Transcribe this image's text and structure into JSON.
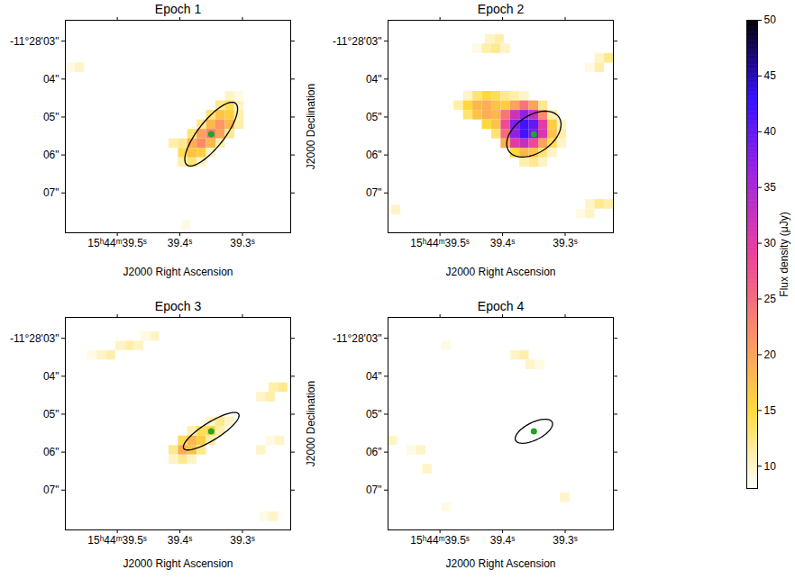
{
  "chart_data": {
    "type": "heatmap",
    "xlim": [
      39.583,
      39.223
    ],
    "ylim": [
      8.05,
      2.45
    ],
    "xticks": [
      {
        "value": 39.5,
        "label": "15ʰ44ᵐ39.5ˢ"
      },
      {
        "value": 39.4,
        "label": "39.4ˢ"
      },
      {
        "value": 39.3,
        "label": "39.3ˢ"
      }
    ],
    "yticks": [
      {
        "value": 3,
        "label": "-11°28'03\""
      },
      {
        "value": 4,
        "label": "04\""
      },
      {
        "value": 5,
        "label": "05\""
      },
      {
        "value": 6,
        "label": "06\""
      },
      {
        "value": 7,
        "label": "07\""
      }
    ],
    "cell_size": {
      "ra": 0.015,
      "dec": 0.25
    },
    "colorbar": {
      "label": "Flux density (μJy)",
      "range": [
        8,
        50
      ],
      "ticks": [
        10,
        15,
        20,
        25,
        30,
        35,
        40,
        45,
        50
      ],
      "colors": [
        "#ffffff",
        "#ffd93b",
        "#f98c68",
        "#ee3f9c",
        "#a024e0",
        "#3410ff",
        "#000000"
      ]
    },
    "panels": [
      {
        "title": "Epoch 1",
        "xlabel": "J2000 Right Ascension",
        "source": {
          "ra": 39.35,
          "dec": 5.45,
          "color": "#22a32a",
          "marker": "circle"
        },
        "ellipse": {
          "ra": 39.35,
          "dec": 5.45,
          "major": 2.0,
          "minor": 0.65,
          "pa": 145
        },
        "cells": [
          {
            "dec": 3.7,
            "ra_start": 39.575,
            "flux": [
              9,
              10
            ]
          },
          {
            "dec": 4.45,
            "ra_start": 39.32,
            "flux": [
              10,
              9
            ]
          },
          {
            "dec": 4.7,
            "ra_start": 39.335,
            "flux": [
              12,
              14,
              10
            ]
          },
          {
            "dec": 4.95,
            "ra_start": 39.35,
            "flux": [
              13,
              17,
              16,
              11
            ]
          },
          {
            "dec": 5.2,
            "ra_start": 39.365,
            "flux": [
              12,
              18,
              21,
              18,
              11
            ]
          },
          {
            "dec": 5.45,
            "ra_start": 39.38,
            "flux": [
              13,
              20,
              23,
              20,
              12
            ]
          },
          {
            "dec": 5.7,
            "ra_start": 39.41,
            "flux": [
              11,
              12,
              19,
              22,
              18,
              11
            ]
          },
          {
            "dec": 5.95,
            "ra_start": 39.395,
            "flux": [
              14,
              17,
              16,
              10
            ]
          },
          {
            "dec": 6.2,
            "ra_start": 39.395,
            "flux": [
              11,
              13,
              10
            ]
          },
          {
            "dec": 7.85,
            "ra_start": 39.39,
            "flux": [
              9
            ]
          }
        ]
      },
      {
        "title": "Epoch 2",
        "xlabel": "J2000 Right Ascension",
        "ylabel": "J2000 Declination",
        "source": {
          "ra": 39.35,
          "dec": 5.45,
          "color": "#22a32a",
          "marker": "circle"
        },
        "ellipse": {
          "ra": 39.35,
          "dec": 5.45,
          "major": 1.5,
          "minor": 0.95,
          "pa": 130
        },
        "cells": [
          {
            "dec": 2.95,
            "ra_start": 39.42,
            "flux": [
              10,
              11
            ]
          },
          {
            "dec": 3.2,
            "ra_start": 39.44,
            "flux": [
              9,
              11,
              12,
              10
            ]
          },
          {
            "dec": 3.45,
            "ra_start": 39.245,
            "flux": [
              10,
              12
            ]
          },
          {
            "dec": 3.7,
            "ra_start": 39.26,
            "flux": [
              9,
              11
            ]
          },
          {
            "dec": 4.45,
            "ra_start": 39.455,
            "flux": [
              10,
              13,
              15,
              14,
              12,
              11,
              10
            ]
          },
          {
            "dec": 4.7,
            "ra_start": 39.47,
            "flux": [
              11,
              15,
              18,
              19,
              17,
              16,
              20,
              24,
              20,
              12
            ]
          },
          {
            "dec": 4.95,
            "ra_start": 39.455,
            "flux": [
              13,
              17,
              19,
              18,
              24,
              32,
              37,
              33,
              22,
              11
            ]
          },
          {
            "dec": 5.2,
            "ra_start": 39.425,
            "flux": [
              15,
              17,
              28,
              38,
              42,
              40,
              30,
              16,
              10
            ]
          },
          {
            "dec": 5.45,
            "ra_start": 39.41,
            "flux": [
              13,
              25,
              37,
              42,
              39,
              31,
              17,
              11
            ]
          },
          {
            "dec": 5.7,
            "ra_start": 39.395,
            "flux": [
              19,
              30,
              33,
              28,
              20,
              14,
              10
            ]
          },
          {
            "dec": 5.95,
            "ra_start": 39.38,
            "flux": [
              15,
              18,
              17,
              13,
              10
            ]
          },
          {
            "dec": 6.2,
            "ra_start": 39.365,
            "flux": [
              11,
              12,
              10
            ]
          },
          {
            "dec": 7.3,
            "ra_start": 39.26,
            "flux": [
              10,
              12,
              11
            ]
          },
          {
            "dec": 7.45,
            "ra_start": 39.57,
            "flux": [
              10
            ]
          },
          {
            "dec": 7.55,
            "ra_start": 39.275,
            "flux": [
              9,
              10
            ]
          }
        ]
      },
      {
        "title": "Epoch 3",
        "xlabel": "J2000 Right Ascension",
        "source": {
          "ra": 39.35,
          "dec": 5.45,
          "color": "#22a32a",
          "marker": "circle"
        },
        "ellipse": {
          "ra": 39.35,
          "dec": 5.45,
          "major": 1.6,
          "minor": 0.45,
          "pa": 125
        },
        "cells": [
          {
            "dec": 2.95,
            "ra_start": 39.455,
            "flux": [
              9,
              10
            ]
          },
          {
            "dec": 3.2,
            "ra_start": 39.495,
            "flux": [
              10,
              11,
              10
            ]
          },
          {
            "dec": 3.45,
            "ra_start": 39.54,
            "flux": [
              9,
              10,
              11
            ]
          },
          {
            "dec": 4.3,
            "ra_start": 39.25,
            "flux": [
              11,
              12
            ]
          },
          {
            "dec": 4.55,
            "ra_start": 39.27,
            "flux": [
              10,
              11
            ]
          },
          {
            "dec": 5.2,
            "ra_start": 39.35,
            "flux": [
              10,
              12,
              10
            ]
          },
          {
            "dec": 5.45,
            "ra_start": 39.38,
            "flux": [
              11,
              14,
              15,
              11
            ]
          },
          {
            "dec": 5.7,
            "ra_start": 39.395,
            "flux": [
              14,
              18,
              16,
              11
            ]
          },
          {
            "dec": 5.7,
            "ra_start": 39.255,
            "flux": [
              9,
              10
            ]
          },
          {
            "dec": 5.95,
            "ra_start": 39.41,
            "flux": [
              12,
              19,
              17,
              12
            ]
          },
          {
            "dec": 5.95,
            "ra_start": 39.27,
            "flux": [
              10
            ]
          },
          {
            "dec": 6.2,
            "ra_start": 39.41,
            "flux": [
              10,
              12,
              10
            ]
          },
          {
            "dec": 7.7,
            "ra_start": 39.265,
            "flux": [
              9,
              10
            ]
          }
        ]
      },
      {
        "title": "Epoch 4",
        "xlabel": "J2000 Right Ascension",
        "ylabel": "J2000 Declination",
        "source": {
          "ra": 39.35,
          "dec": 5.45,
          "color": "#22a32a",
          "marker": "circle"
        },
        "ellipse": {
          "ra": 39.35,
          "dec": 5.45,
          "major": 1.0,
          "minor": 0.45,
          "pa": 120
        },
        "cells": [
          {
            "dec": 3.2,
            "ra_start": 39.49,
            "flux": [
              9
            ]
          },
          {
            "dec": 3.45,
            "ra_start": 39.38,
            "flux": [
              10,
              11
            ]
          },
          {
            "dec": 3.7,
            "ra_start": 39.355,
            "flux": [
              10,
              9
            ]
          },
          {
            "dec": 5.7,
            "ra_start": 39.575,
            "flux": [
              10
            ]
          },
          {
            "dec": 5.95,
            "ra_start": 39.545,
            "flux": [
              9,
              10
            ]
          },
          {
            "dec": 6.45,
            "ra_start": 39.52,
            "flux": [
              10
            ]
          },
          {
            "dec": 7.2,
            "ra_start": 39.3,
            "flux": [
              10
            ]
          },
          {
            "dec": 7.45,
            "ra_start": 39.49,
            "flux": [
              9
            ]
          }
        ]
      }
    ]
  }
}
